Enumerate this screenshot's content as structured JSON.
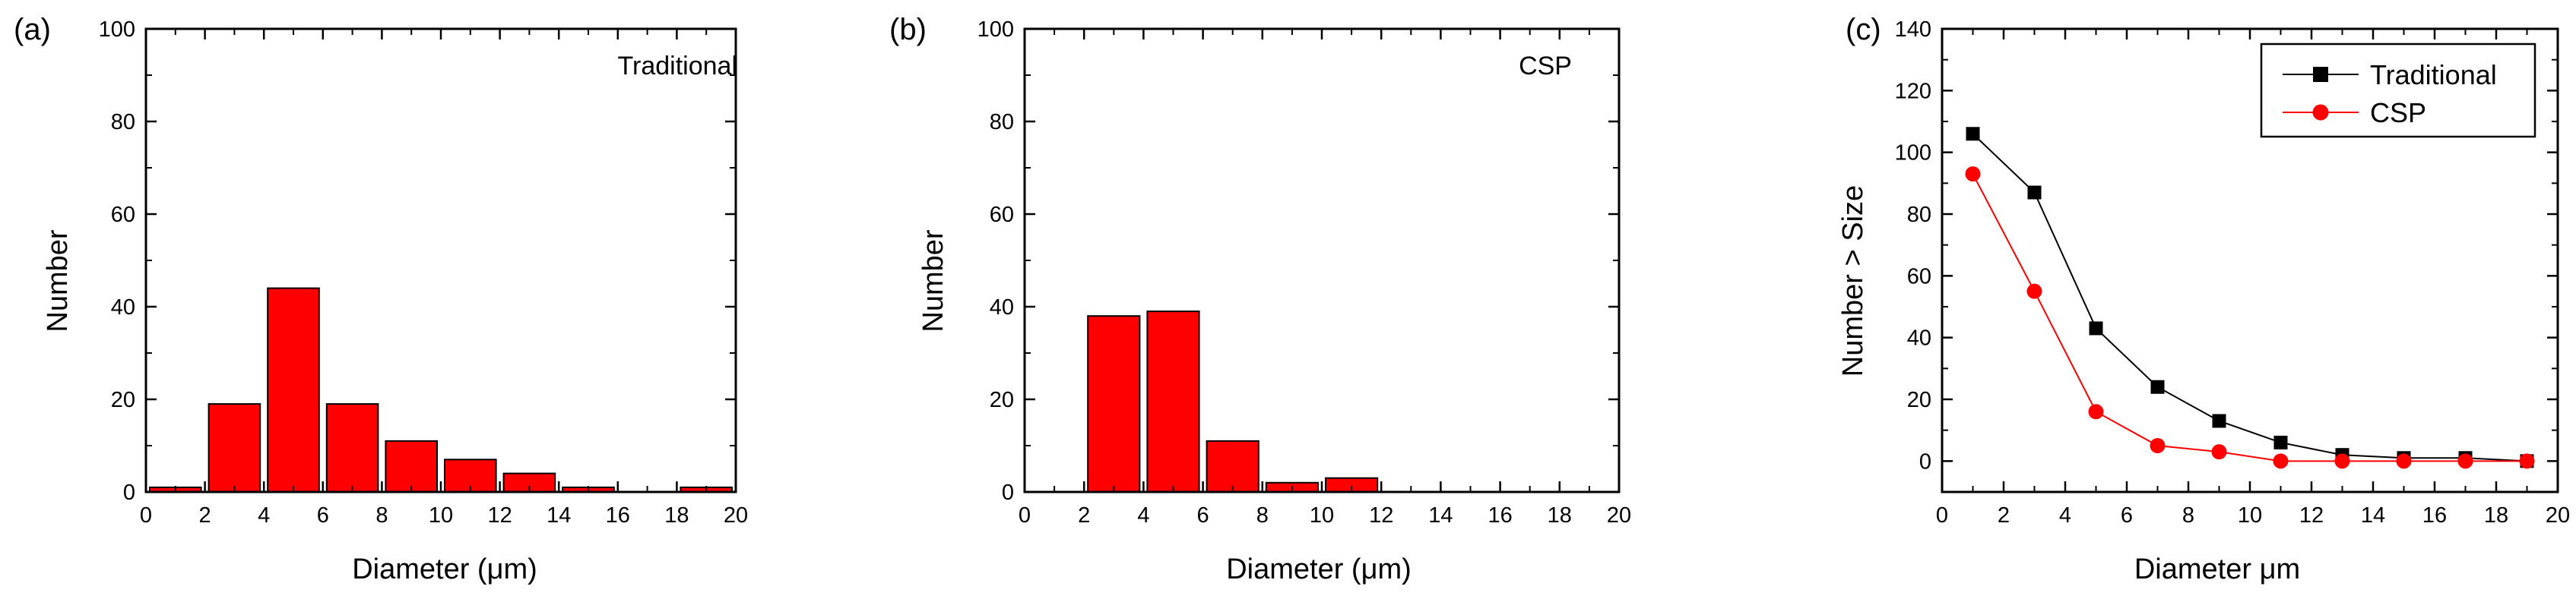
{
  "chart_data": [
    {
      "type": "bar",
      "panel_label": "(a)",
      "annotation": "Traditional",
      "xlabel_main": "Diameter",
      "xlabel_unit": "(μm)",
      "ylabel": "Number",
      "xlim": [
        0,
        20
      ],
      "ylim": [
        0,
        100
      ],
      "x_ticks": [
        "0",
        "2",
        "4",
        "6",
        "8",
        "10",
        "12",
        "14",
        "16",
        "18",
        "20"
      ],
      "y_ticks": [
        "0",
        "20",
        "40",
        "60",
        "80",
        "100"
      ],
      "bar_color": "#ff0000",
      "bins": [
        [
          0,
          2
        ],
        [
          2,
          4
        ],
        [
          4,
          6
        ],
        [
          6,
          8
        ],
        [
          8,
          10
        ],
        [
          10,
          12
        ],
        [
          12,
          14
        ],
        [
          14,
          16
        ],
        [
          16,
          18
        ],
        [
          18,
          20
        ]
      ],
      "values": [
        1,
        19,
        44,
        19,
        11,
        7,
        4,
        1,
        0,
        1
      ]
    },
    {
      "type": "bar",
      "panel_label": "(b)",
      "annotation": "CSP",
      "xlabel_main": "Diameter",
      "xlabel_unit": "(μm)",
      "ylabel": "Number",
      "xlim": [
        0,
        20
      ],
      "ylim": [
        0,
        100
      ],
      "x_ticks": [
        "0",
        "2",
        "4",
        "6",
        "8",
        "10",
        "12",
        "14",
        "16",
        "18",
        "20"
      ],
      "y_ticks": [
        "0",
        "20",
        "40",
        "60",
        "80",
        "100"
      ],
      "bar_color": "#ff0000",
      "bins": [
        [
          0,
          2
        ],
        [
          2,
          4
        ],
        [
          4,
          6
        ],
        [
          6,
          8
        ],
        [
          8,
          10
        ],
        [
          10,
          12
        ],
        [
          12,
          14
        ],
        [
          14,
          16
        ],
        [
          16,
          18
        ],
        [
          18,
          20
        ]
      ],
      "values": [
        0,
        38,
        39,
        11,
        2,
        3,
        0,
        0,
        0,
        0
      ]
    },
    {
      "type": "line",
      "panel_label": "(c)",
      "xlabel_main": "Diameter",
      "xlabel_unit": "μm",
      "ylabel": "Number > Size",
      "xlim": [
        0,
        20
      ],
      "ylim": [
        -10,
        140
      ],
      "x_ticks": [
        "0",
        "2",
        "4",
        "6",
        "8",
        "10",
        "12",
        "14",
        "16",
        "18",
        "20"
      ],
      "y_ticks": [
        "0",
        "20",
        "40",
        "60",
        "80",
        "100",
        "120",
        "140"
      ],
      "legend_position": "top-right",
      "x": [
        1,
        3,
        5,
        7,
        9,
        11,
        13,
        15,
        17,
        19
      ],
      "series": [
        {
          "name": "Traditional",
          "marker": "square",
          "color": "#000000",
          "values": [
            106,
            87,
            43,
            24,
            13,
            6,
            2,
            1,
            1,
            0
          ]
        },
        {
          "name": "CSP",
          "marker": "circle",
          "color": "#ff0000",
          "values": [
            93,
            55,
            16,
            5,
            3,
            0,
            0,
            0,
            0,
            0
          ]
        }
      ]
    }
  ]
}
